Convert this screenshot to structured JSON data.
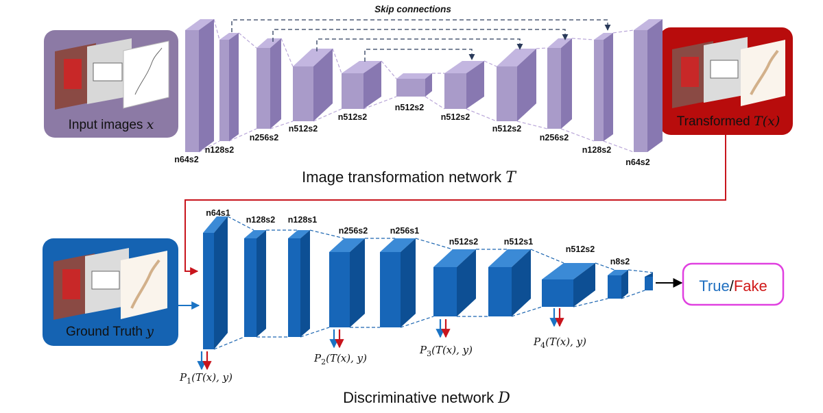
{
  "generator": {
    "title": "Image transformation network",
    "title_symbol": "T",
    "skip_label": "Skip connections",
    "layers": [
      "n64s2",
      "n128s2",
      "n256s2",
      "n512s2",
      "n512s2",
      "n512s2",
      "n512s2",
      "n512s2",
      "n256s2",
      "n128s2",
      "n64s2"
    ]
  },
  "discriminator": {
    "title": "Discriminative network",
    "title_symbol": "D",
    "layers": [
      "n64s1",
      "n128s2",
      "n128s1",
      "n256s2",
      "n256s1",
      "n512s2",
      "n512s1",
      "n512s2",
      "n8s2"
    ],
    "probes": [
      {
        "label": "P",
        "sub": "1",
        "arg": "(T(x), y)"
      },
      {
        "label": "P",
        "sub": "2",
        "arg": "(T(x), y)"
      },
      {
        "label": "P",
        "sub": "3",
        "arg": "(T(x), y)"
      },
      {
        "label": "P",
        "sub": "4",
        "arg": "(T(x), y)"
      }
    ]
  },
  "boxes": {
    "input": {
      "label": "Input images",
      "symbol": "x"
    },
    "transformed": {
      "label": "Transformed",
      "symbol": "T(x)"
    },
    "ground_truth": {
      "label": "Ground Truth",
      "symbol": "y"
    }
  },
  "output": {
    "true_label": "True",
    "separator": "/",
    "fake_label": "Fake"
  },
  "colors": {
    "generator_front": "#a99bc9",
    "generator_side": "#8878b1",
    "discriminator_front": "#1766b8",
    "discriminator_side": "#0d4f94",
    "input_box": "#8c7aa5",
    "transformed_box": "#b80c0c",
    "ground_truth_box": "#1563b2",
    "true_text": "#1f6fc0",
    "fake_text": "#d01818",
    "output_border": "#e040e0",
    "red_arrow": "#c8141c",
    "blue_arrow": "#1a73c4"
  }
}
